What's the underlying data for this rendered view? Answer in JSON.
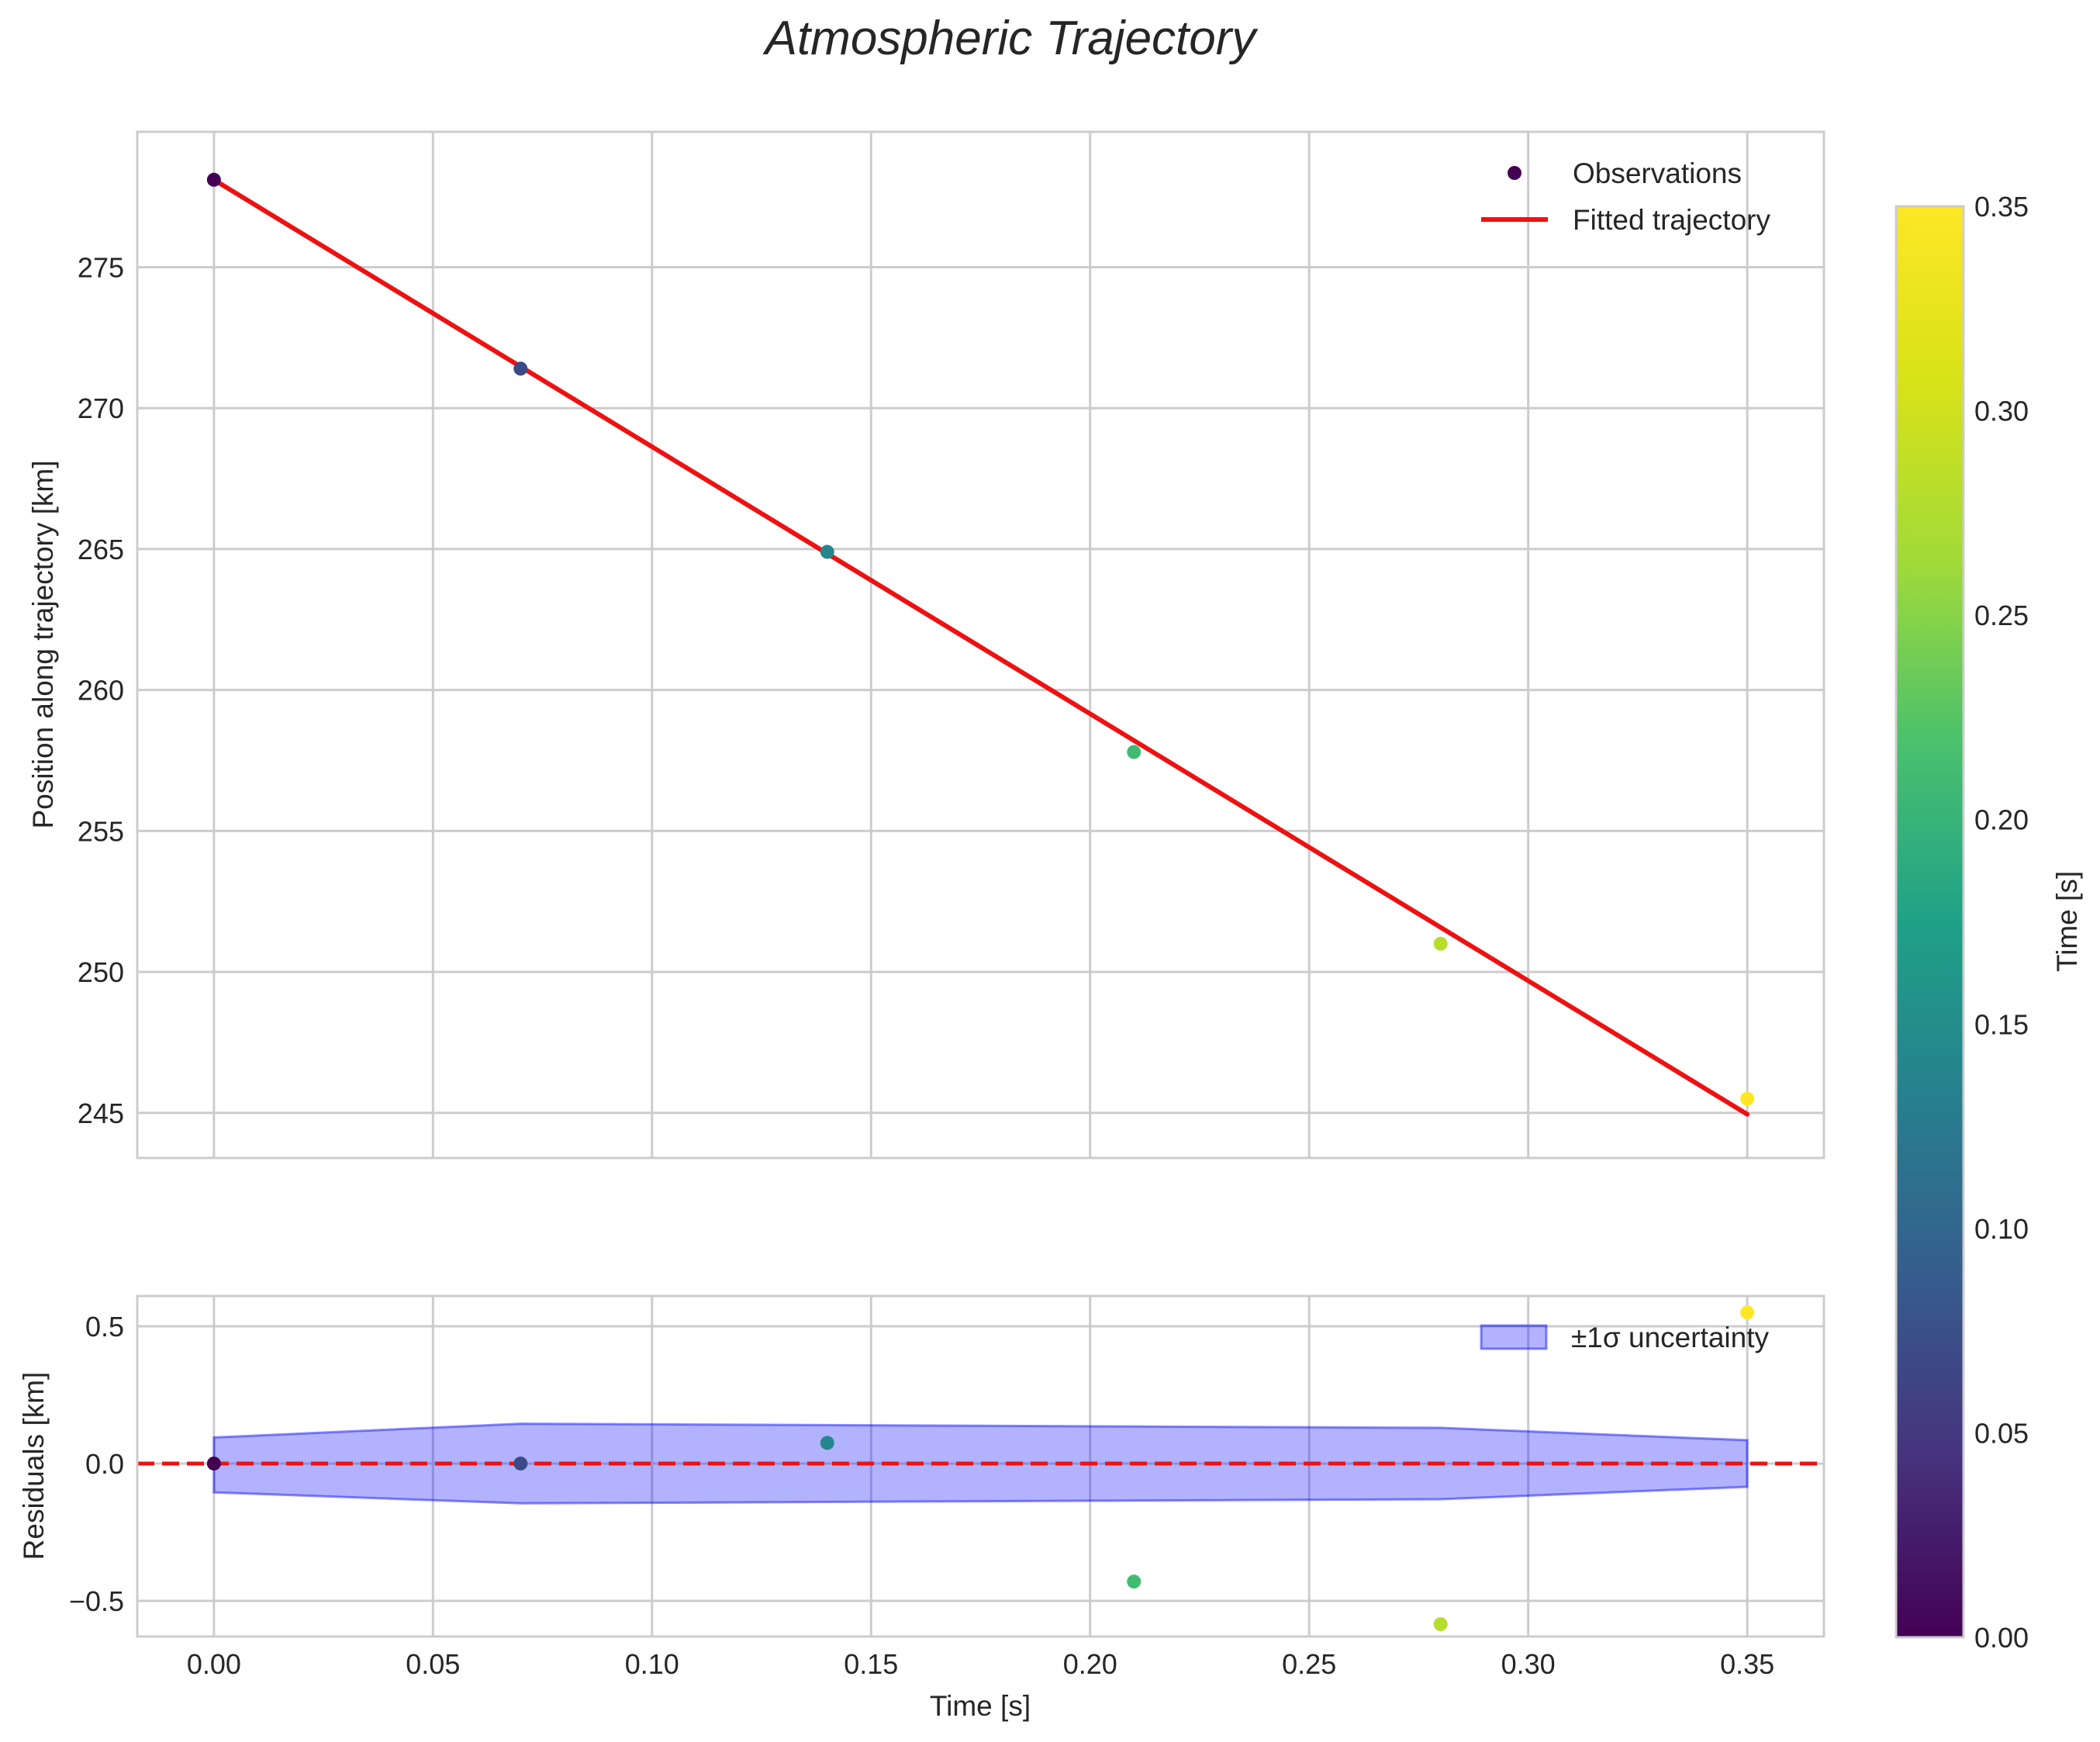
{
  "chart_data": [
    {
      "type": "scatter",
      "title": "Atmospheric Trajectory",
      "xlabel": "",
      "ylabel": "Position along trajectory [km]",
      "xlim": [
        -0.0175,
        0.3675
      ],
      "ylim": [
        243.4,
        279.8
      ],
      "x_ticks": [
        "0.00",
        "0.05",
        "0.10",
        "0.15",
        "0.20",
        "0.25",
        "0.30",
        "0.35"
      ],
      "y_ticks": [
        "245",
        "250",
        "255",
        "260",
        "265",
        "270",
        "275"
      ],
      "grid": true,
      "legend_position": "top-right",
      "series": [
        {
          "name": "Observations",
          "kind": "scatter",
          "x": [
            0.0,
            0.07,
            0.14,
            0.21,
            0.28,
            0.35
          ],
          "y": [
            278.1,
            271.4,
            264.9,
            257.8,
            251.0,
            245.5
          ]
        },
        {
          "name": "Fitted trajectory",
          "kind": "line",
          "color": "#ee1111",
          "x": [
            0.0,
            0.35
          ],
          "y": [
            278.1,
            244.95
          ]
        }
      ]
    },
    {
      "type": "scatter",
      "title": "",
      "xlabel": "Time [s]",
      "ylabel": "Residuals [km]",
      "xlim": [
        -0.0175,
        0.3675
      ],
      "ylim": [
        -0.63,
        0.61
      ],
      "x_ticks": [
        "0.00",
        "0.05",
        "0.10",
        "0.15",
        "0.20",
        "0.25",
        "0.30",
        "0.35"
      ],
      "y_ticks": [
        "−0.5",
        "0.0",
        "0.5"
      ],
      "y_tick_values": [
        -0.5,
        0.0,
        0.5
      ],
      "grid": true,
      "legend_position": "top-right",
      "zero_line": {
        "y": 0,
        "color": "#ee1111",
        "style": "dashed"
      },
      "series": [
        {
          "name": "Residuals",
          "kind": "scatter",
          "x": [
            0.0,
            0.07,
            0.14,
            0.21,
            0.28,
            0.35
          ],
          "y": [
            0.0,
            0.0,
            0.075,
            -0.43,
            -0.585,
            0.55
          ]
        },
        {
          "name": "±1σ uncertainty",
          "kind": "band",
          "color": "#0000ff",
          "x": [
            0.0,
            0.07,
            0.14,
            0.21,
            0.28,
            0.35
          ],
          "upper": [
            0.095,
            0.145,
            0.14,
            0.135,
            0.13,
            0.085
          ],
          "lower": [
            -0.105,
            -0.145,
            -0.14,
            -0.135,
            -0.13,
            -0.085
          ]
        }
      ]
    }
  ],
  "colorbar": {
    "label": "Time [s]",
    "colormap": "viridis",
    "range": [
      0.0,
      0.35
    ],
    "ticks": [
      "0.00",
      "0.05",
      "0.10",
      "0.15",
      "0.20",
      "0.25",
      "0.30",
      "0.35"
    ]
  }
}
